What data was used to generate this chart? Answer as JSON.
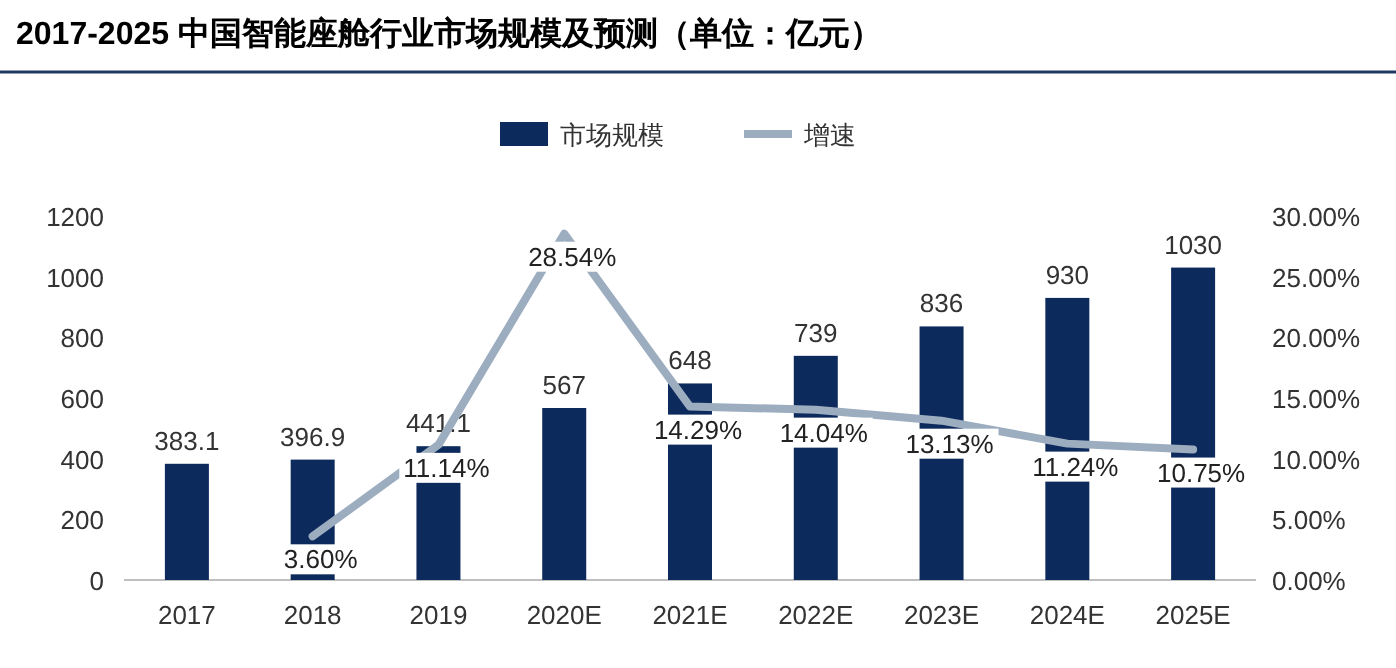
{
  "chart_data": {
    "type": "bar",
    "title": "2017-2025 中国智能座舱行业市场规模及预测（单位：亿元）",
    "categories": [
      "2017",
      "2018",
      "2019",
      "2020E",
      "2021E",
      "2022E",
      "2023E",
      "2024E",
      "2025E"
    ],
    "series": [
      {
        "name": "市场规模",
        "color": "#0d2a5c",
        "values": [
          383.1,
          396.9,
          441.1,
          567,
          648,
          739,
          836,
          930,
          1030
        ]
      },
      {
        "name": "增速",
        "type": "line",
        "axis": "y2",
        "color": "#9dadc0",
        "values": [
          null,
          3.6,
          11.14,
          28.54,
          14.29,
          14.04,
          13.13,
          11.24,
          10.75
        ],
        "value_labels": [
          null,
          "3.60%",
          "11.14%",
          "28.54%",
          "14.29%",
          "14.04%",
          "13.13%",
          "11.24%",
          "10.75%"
        ]
      }
    ],
    "ylim": [
      0,
      1200
    ],
    "yticks": [
      0,
      200,
      400,
      600,
      800,
      1000,
      1200
    ],
    "y2lim": [
      0,
      30
    ],
    "y2ticks": [
      {
        "value": 0,
        "label": "0.00%"
      },
      {
        "value": 5,
        "label": "5.00%"
      },
      {
        "value": 10,
        "label": "10.00%"
      },
      {
        "value": 15,
        "label": "15.00%"
      },
      {
        "value": 20,
        "label": "20.00%"
      },
      {
        "value": 25,
        "label": "25.00%"
      },
      {
        "value": 30,
        "label": "30.00%"
      }
    ],
    "data_labels": true,
    "legend": "top",
    "grid": false
  }
}
